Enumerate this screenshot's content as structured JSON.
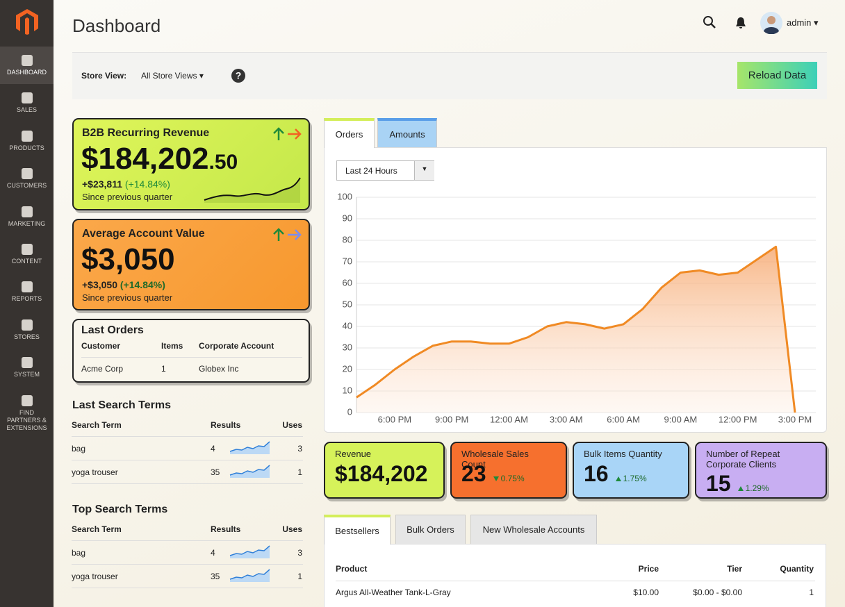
{
  "sidebar": {
    "items": [
      "DASHBOARD",
      "SALES",
      "PRODUCTS",
      "CUSTOMERS",
      "MARKETING",
      "CONTENT",
      "REPORTS",
      "STORES",
      "SYSTEM",
      "FIND PARTNERS & EXTENSIONS"
    ]
  },
  "header": {
    "title": "Dashboard",
    "user": "admin"
  },
  "store_bar": {
    "label": "Store View:",
    "selected": "All Store Views",
    "button": "Reload Data"
  },
  "cards": [
    {
      "title": "B2B Recurring Revenue",
      "value_main": "$184,202",
      "value_cents": ".50",
      "change": "+$23,811",
      "change_pct": "(+14.84%)",
      "note": "Since previous quarter"
    },
    {
      "title": "Average Account Value",
      "value_main": "$3,050",
      "change": "+$3,050",
      "change_pct": "(+14.84%)",
      "note": "Since previous quarter"
    }
  ],
  "last_orders": {
    "title": "Last Orders",
    "columns": [
      "Customer",
      "Items",
      "Corporate Account"
    ],
    "rows": [
      [
        "Acme Corp",
        "1",
        "Globex Inc"
      ]
    ]
  },
  "last_search": {
    "title": "Last Search Terms",
    "columns": [
      "Search Term",
      "Results",
      "Uses"
    ],
    "rows": [
      [
        "bag",
        "4",
        "3"
      ],
      [
        "yoga trouser",
        "35",
        "1"
      ]
    ]
  },
  "top_search": {
    "title": "Top Search Terms",
    "columns": [
      "Search Term",
      "Results",
      "Uses"
    ],
    "rows": [
      [
        "bag",
        "4",
        "3"
      ],
      [
        "yoga trouser",
        "35",
        "1"
      ]
    ]
  },
  "chart_tabs": [
    "Orders",
    "Amounts"
  ],
  "range": "Last 24 Hours",
  "chart_data": {
    "type": "area",
    "categories": [
      null,
      null,
      "6:00 PM",
      null,
      null,
      "9:00 PM",
      null,
      null,
      "12:00 AM",
      null,
      null,
      "3:00 AM",
      null,
      null,
      "6:00 AM",
      null,
      null,
      "9:00 AM",
      null,
      null,
      "12:00 PM",
      null,
      null,
      "3:00 PM"
    ],
    "values": [
      7,
      13,
      20,
      26,
      31,
      33,
      33,
      32,
      32,
      35,
      40,
      42,
      41,
      39,
      41,
      48,
      58,
      65,
      66,
      64,
      65,
      71,
      77,
      0
    ],
    "color": "#f08a24",
    "ylim": [
      0,
      100
    ],
    "yticks": [
      0,
      10,
      20,
      30,
      40,
      50,
      60,
      70,
      80,
      90,
      100
    ],
    "grid": true
  },
  "kpis": [
    {
      "label": "Revenue",
      "value": "$184,202"
    },
    {
      "label": "Wholesale Sales Count",
      "value": "23",
      "change": "0.75%",
      "direction": "down"
    },
    {
      "label": "Bulk Items Quantity",
      "value": "16",
      "change": "1.75%",
      "direction": "up"
    },
    {
      "label": "Number of Repeat Corporate Clients",
      "value": "15",
      "change": "1.29%",
      "direction": "up"
    }
  ],
  "bottom_tabs": [
    "Bestsellers",
    "Bulk Orders",
    "New Wholesale Accounts"
  ],
  "bestsellers": {
    "columns": [
      "Product",
      "Price",
      "Tier",
      "Quantity"
    ],
    "rows": [
      [
        "Argus All-Weather Tank-L-Gray",
        "$10.00",
        "$0.00 - $0.00",
        "1"
      ]
    ]
  }
}
